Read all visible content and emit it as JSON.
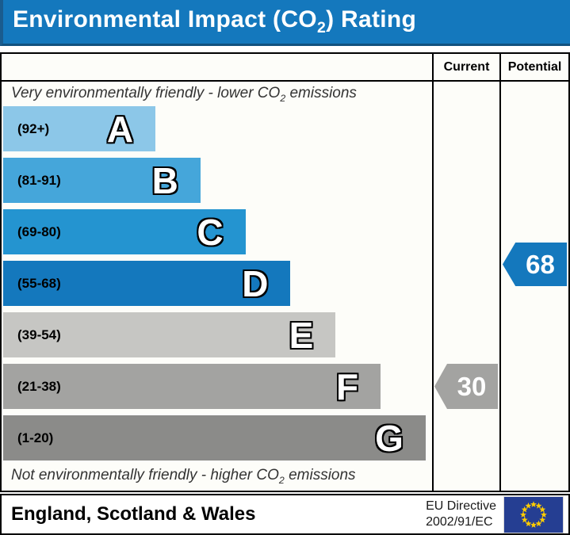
{
  "title": {
    "pre": "Environmental Impact (CO",
    "sub": "2",
    "post": ") Rating"
  },
  "table": {
    "current_label": "Current",
    "potential_label": "Potential"
  },
  "captions": {
    "top": {
      "pre": "Very environmentally friendly - lower CO",
      "sub": "2",
      "post": " emissions"
    },
    "bottom": {
      "pre": "Not environmentally friendly - higher CO",
      "sub": "2",
      "post": " emissions"
    }
  },
  "chart": {
    "bands": [
      {
        "letter": "A",
        "range": "(92+)",
        "color": "#8cc7e8",
        "width_pct": 35.5
      },
      {
        "letter": "B",
        "range": "(81-91)",
        "color": "#45a6da",
        "width_pct": 46
      },
      {
        "letter": "C",
        "range": "(69-80)",
        "color": "#2494d0",
        "width_pct": 56.5
      },
      {
        "letter": "D",
        "range": "(55-68)",
        "color": "#1478bd",
        "width_pct": 67
      },
      {
        "letter": "E",
        "range": "(39-54)",
        "color": "#c6c6c3",
        "width_pct": 77.5
      },
      {
        "letter": "F",
        "range": "(21-38)",
        "color": "#a3a3a1",
        "width_pct": 88
      },
      {
        "letter": "G",
        "range": "(1-20)",
        "color": "#8b8b89",
        "width_pct": 98.5
      }
    ],
    "current": {
      "value": "30",
      "color": "#a3a3a1"
    },
    "potential": {
      "value": "68",
      "color": "#1478bd"
    }
  },
  "chart_data": {
    "type": "bar",
    "title": "Environmental Impact (CO2) Rating",
    "categories": [
      "A",
      "B",
      "C",
      "D",
      "E",
      "F",
      "G"
    ],
    "ranges": [
      "92+",
      "81-91",
      "69-80",
      "55-68",
      "39-54",
      "21-38",
      "1-20"
    ],
    "bar_lengths_pct": [
      35.5,
      46,
      56.5,
      67,
      77.5,
      88,
      98.5
    ],
    "bar_colors": [
      "#8cc7e8",
      "#45a6da",
      "#2494d0",
      "#1478bd",
      "#c6c6c3",
      "#a3a3a1",
      "#8b8b89"
    ],
    "columns": [
      "Current",
      "Potential"
    ],
    "current": 30,
    "current_band": "F",
    "current_color": "#a3a3a1",
    "potential": 68,
    "potential_band": "D",
    "potential_color": "#1478bd",
    "annotation_top": "Very environmentally friendly - lower CO2 emissions",
    "annotation_bottom": "Not environmentally friendly - higher CO2 emissions",
    "legend_position": "none",
    "grid": false
  },
  "footer": {
    "region": "England, Scotland & Wales",
    "directive_line1": "EU Directive",
    "directive_line2": "2002/91/EC",
    "eu_flag": {
      "bg": "#253e92",
      "star": "#ffcc00"
    }
  },
  "colors": {
    "banner": "#1478bd",
    "border": "#000000",
    "chart_bg": "#fdfdf9"
  }
}
